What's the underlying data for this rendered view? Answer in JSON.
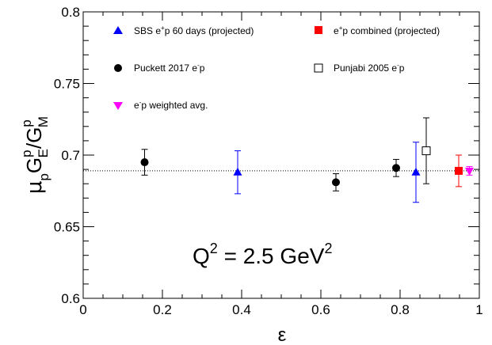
{
  "chart_data": {
    "type": "scatter",
    "xlim": [
      0,
      1
    ],
    "ylim": [
      0.6,
      0.8
    ],
    "x_ticks": [
      "0",
      "0.2",
      "0.4",
      "0.6",
      "0.8",
      "1"
    ],
    "y_ticks": [
      "0.6",
      "0.65",
      "0.7",
      "0.75",
      "0.8"
    ],
    "xlabel": "ε",
    "ylabel": {
      "mu": "μ",
      "mu_sub": "p",
      "ge": "G",
      "ge_sup": "p",
      "ge_sub": "E",
      "slash": "/",
      "gm": "G",
      "gm_sup": "p",
      "gm_sub": "M"
    },
    "grid": false,
    "reference_line": {
      "y": 0.689,
      "style": "dotted"
    },
    "annotation": {
      "base": "Q",
      "exp1": "2",
      "middle": " = 2.5 GeV",
      "exp2": "2"
    },
    "series": [
      {
        "legend": {
          "pre": "SBS e",
          "sup": "+",
          "post": "p 60 days (projected)"
        },
        "marker": "triangle-up",
        "color": "#0000ff",
        "points": [
          {
            "x": 0.39,
            "y": 0.688,
            "err": 0.015
          },
          {
            "x": 0.84,
            "y": 0.688,
            "err": 0.021
          }
        ]
      },
      {
        "legend": {
          "pre": "e",
          "sup": "+",
          "post": "p combined (projected)"
        },
        "marker": "square",
        "color": "#ff0000",
        "points": [
          {
            "x": 0.948,
            "y": 0.689,
            "err": 0.011
          }
        ]
      },
      {
        "legend": {
          "pre": "Puckett 2017 e",
          "sup": "-",
          "post": "p"
        },
        "marker": "circle",
        "color": "#000000",
        "points": [
          {
            "x": 0.155,
            "y": 0.695,
            "err": 0.009
          },
          {
            "x": 0.638,
            "y": 0.681,
            "err": 0.006
          },
          {
            "x": 0.79,
            "y": 0.691,
            "err": 0.006
          }
        ]
      },
      {
        "legend": {
          "pre": "Punjabi 2005 e",
          "sup": "-",
          "post": "p"
        },
        "marker": "open-square",
        "color": "#000000",
        "points": [
          {
            "x": 0.866,
            "y": 0.703,
            "err": 0.023
          }
        ]
      },
      {
        "legend": {
          "pre": "e",
          "sup": "-",
          "post": "p weighted avg."
        },
        "marker": "triangle-down",
        "color": "#ff00ff",
        "points": [
          {
            "x": 0.975,
            "y": 0.689,
            "err": 0.003
          }
        ]
      }
    ]
  }
}
